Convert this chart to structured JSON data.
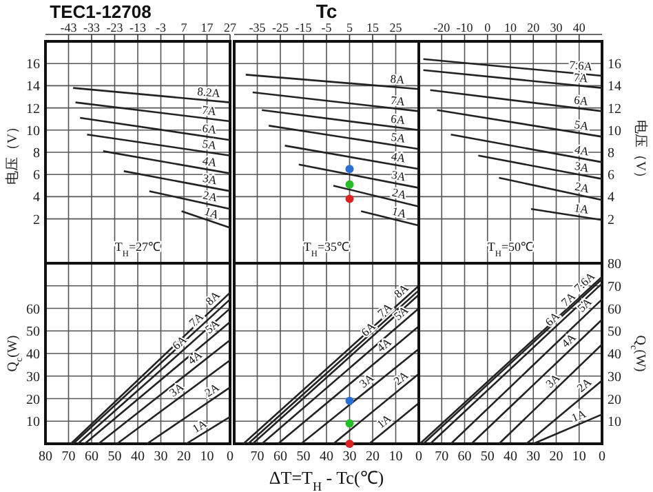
{
  "chart_data": [
    {
      "type": "line",
      "title": "TEC1-12708",
      "ylabel": "电压（V）",
      "xlim": [
        80,
        0
      ],
      "x2lim": [
        -53,
        27
      ],
      "x2ticks": [
        -43,
        -33,
        -23,
        -13,
        -3,
        7,
        17,
        27
      ],
      "ylim": [
        -2,
        18
      ],
      "yticks": [
        2,
        4,
        6,
        8,
        10,
        12,
        14,
        16
      ],
      "grid": true,
      "annotations": [
        "T$_{H}$=27℃"
      ],
      "series": [
        {
          "name": "8.2A",
          "color": "#222222",
          "x": [
            68,
            0
          ],
          "values": [
            13.8,
            12.5
          ]
        },
        {
          "name": "7A",
          "color": "#222222",
          "x": [
            67,
            0
          ],
          "values": [
            12.5,
            10.8
          ]
        },
        {
          "name": "6A",
          "color": "#222222",
          "x": [
            65,
            0
          ],
          "values": [
            11.1,
            9.1
          ]
        },
        {
          "name": "5A",
          "color": "#222222",
          "x": [
            62,
            0
          ],
          "values": [
            9.6,
            7.7
          ]
        },
        {
          "name": "4A",
          "color": "#222222",
          "x": [
            55,
            0
          ],
          "values": [
            8.1,
            6.1
          ]
        },
        {
          "name": "3A",
          "color": "#222222",
          "x": [
            46,
            0
          ],
          "values": [
            6.3,
            4.5
          ]
        },
        {
          "name": "2A",
          "color": "#222222",
          "x": [
            35,
            0
          ],
          "values": [
            4.5,
            2.9
          ]
        },
        {
          "name": "1A",
          "color": "#222222",
          "x": [
            21,
            0
          ],
          "values": [
            2.7,
            1.2
          ]
        }
      ]
    },
    {
      "type": "line",
      "x2label": "Tc",
      "xlim": [
        80,
        0
      ],
      "x2lim": [
        -45,
        35
      ],
      "x2ticks": [
        -35,
        -25,
        -15,
        -5,
        5,
        15,
        25
      ],
      "ylim": [
        -2,
        18
      ],
      "yticks": [
        2,
        4,
        6,
        8,
        10,
        12,
        14,
        16
      ],
      "tick_labels": "x",
      "grid": true,
      "annotations": [
        "T$_{H}$=35℃"
      ],
      "series": [
        {
          "name": "8A",
          "color": "#222222",
          "x": [
            75,
            0
          ],
          "values": [
            15.0,
            13.7
          ]
        },
        {
          "name": "7A",
          "color": "#222222",
          "x": [
            72,
            0
          ],
          "values": [
            13.4,
            11.7
          ]
        },
        {
          "name": "6A",
          "color": "#222222",
          "x": [
            68,
            0
          ],
          "values": [
            11.8,
            10.0
          ]
        },
        {
          "name": "5A",
          "color": "#222222",
          "x": [
            65,
            0
          ],
          "values": [
            10.4,
            8.3
          ]
        },
        {
          "name": "4A",
          "color": "#222222",
          "x": [
            58,
            0
          ],
          "values": [
            8.6,
            6.5
          ]
        },
        {
          "name": "3A",
          "color": "#222222",
          "x": [
            52,
            0
          ],
          "values": [
            6.9,
            4.8
          ]
        },
        {
          "name": "2A",
          "color": "#222222",
          "x": [
            37,
            0
          ],
          "values": [
            5.0,
            3.1
          ]
        },
        {
          "name": "1A",
          "color": "#222222",
          "x": [
            25,
            0
          ],
          "values": [
            2.7,
            1.4
          ]
        },
        {
          "type": "scatter",
          "color": "#2a6fd6",
          "x": [
            30
          ],
          "values": [
            6.5
          ]
        },
        {
          "type": "scatter",
          "color": "#22c022",
          "x": [
            30
          ],
          "values": [
            5.1
          ]
        },
        {
          "type": "scatter",
          "color": "#e02020",
          "x": [
            30
          ],
          "values": [
            3.8
          ]
        }
      ]
    },
    {
      "type": "line",
      "y2label": "电压（V）",
      "xlim": [
        80,
        0
      ],
      "x2lim": [
        -30,
        50
      ],
      "x2ticks": [
        -20,
        -10,
        0,
        10,
        20,
        30,
        40
      ],
      "y2lim": [
        -2,
        18
      ],
      "y2ticks": [
        2,
        4,
        6,
        8,
        10,
        12,
        14,
        16
      ],
      "grid": true,
      "annotations": [
        "T$_{H}$=50℃"
      ],
      "series": [
        {
          "name": "7.6A",
          "axis": "y2",
          "color": "#222222",
          "x": [
            78,
            0
          ],
          "values": [
            16.4,
            14.9
          ]
        },
        {
          "name": "7A",
          "axis": "y2",
          "color": "#222222",
          "x": [
            78,
            0
          ],
          "values": [
            15.4,
            13.8
          ]
        },
        {
          "name": "6A",
          "axis": "y2",
          "color": "#222222",
          "x": [
            75,
            0
          ],
          "values": [
            13.6,
            11.7
          ]
        },
        {
          "name": "5A",
          "axis": "y2",
          "color": "#222222",
          "x": [
            72,
            0
          ],
          "values": [
            11.8,
            9.4
          ]
        },
        {
          "name": "4A",
          "axis": "y2",
          "color": "#222222",
          "x": [
            66,
            0
          ],
          "values": [
            9.6,
            7.1
          ]
        },
        {
          "name": "3A",
          "axis": "y2",
          "color": "#222222",
          "x": [
            54,
            0
          ],
          "values": [
            7.7,
            5.6
          ]
        },
        {
          "name": "2A",
          "axis": "y2",
          "color": "#222222",
          "x": [
            45,
            0
          ],
          "values": [
            5.7,
            3.7
          ]
        },
        {
          "name": "1A",
          "axis": "y2",
          "color": "#222222",
          "x": [
            31,
            0
          ],
          "values": [
            2.9,
            1.9
          ]
        }
      ]
    },
    {
      "type": "line",
      "ylabel": "Q$_{c}$(W)",
      "xlim": [
        80,
        0
      ],
      "xticks": [
        80,
        70,
        60,
        50,
        40,
        30,
        20,
        10,
        0
      ],
      "ylim": [
        0,
        80
      ],
      "yticks": [
        {
          "value": 70,
          "label": null
        },
        10,
        20,
        30,
        40,
        50,
        60
      ],
      "grid": true,
      "series": [
        {
          "name": "8A",
          "color": "#222222",
          "x": [
            69,
            0
          ],
          "values": [
            0,
            67
          ]
        },
        {
          "name": "7A",
          "color": "#222222",
          "x": [
            68,
            0
          ],
          "values": [
            0,
            64
          ]
        },
        {
          "name": "6A",
          "color": "#222222",
          "x": [
            66,
            0
          ],
          "values": [
            0,
            60
          ]
        },
        {
          "name": "5A",
          "color": "#222222",
          "x": [
            63,
            0
          ],
          "values": [
            0,
            54
          ]
        },
        {
          "name": "4A",
          "color": "#222222",
          "x": [
            57,
            0
          ],
          "values": [
            0,
            46
          ]
        },
        {
          "name": "3A",
          "color": "#222222",
          "x": [
            49,
            0
          ],
          "values": [
            0,
            37
          ]
        },
        {
          "name": "2A",
          "color": "#222222",
          "x": [
            36,
            0
          ],
          "values": [
            0,
            25
          ]
        },
        {
          "name": "1A",
          "color": "#222222",
          "x": [
            19,
            0
          ],
          "values": [
            0,
            12
          ]
        }
      ]
    },
    {
      "type": "line",
      "xlabel": "ΔT=T$_{H}$ - Tc(℃)",
      "xlim": [
        80,
        0
      ],
      "xticks": [
        {
          "value": 80,
          "label": null
        },
        70,
        60,
        50,
        40,
        30,
        20,
        10,
        0
      ],
      "ylim": [
        0,
        80
      ],
      "yticks": [
        10,
        20,
        30,
        40,
        50,
        60,
        70
      ],
      "tick_labels": "x",
      "grid": true,
      "series": [
        {
          "name": "8A",
          "color": "#222222",
          "x": [
            76,
            0
          ],
          "values": [
            0,
            70
          ]
        },
        {
          "name": "7A",
          "color": "#222222",
          "x": [
            74,
            0
          ],
          "values": [
            0,
            68
          ]
        },
        {
          "name": "6A",
          "color": "#222222",
          "x": [
            72,
            0
          ],
          "values": [
            0,
            66
          ]
        },
        {
          "name": "5A",
          "color": "#222222",
          "x": [
            68,
            0
          ],
          "values": [
            0,
            60
          ]
        },
        {
          "name": "4A",
          "color": "#222222",
          "x": [
            61,
            0
          ],
          "values": [
            0,
            52
          ]
        },
        {
          "name": "3A",
          "color": "#222222",
          "x": [
            51,
            0
          ],
          "values": [
            0,
            42
          ]
        },
        {
          "name": "2A",
          "color": "#222222",
          "x": [
            37,
            0
          ],
          "values": [
            0,
            31
          ]
        },
        {
          "name": "1A",
          "color": "#222222",
          "x": [
            21.5,
            0
          ],
          "values": [
            0,
            18
          ]
        },
        {
          "type": "scatter",
          "color": "#2a6fd6",
          "x": [
            30
          ],
          "values": [
            19
          ]
        },
        {
          "type": "scatter",
          "color": "#22c022",
          "x": [
            30
          ],
          "values": [
            9
          ]
        },
        {
          "type": "scatter",
          "color": "#e02020",
          "x": [
            30
          ],
          "values": [
            0
          ]
        }
      ]
    },
    {
      "type": "line",
      "y2label": "Q$_{c}$(W)",
      "xlim": [
        80,
        0
      ],
      "xticks": [
        {
          "value": 80,
          "label": null
        },
        70,
        60,
        50,
        40,
        30,
        20,
        10,
        0
      ],
      "y2lim": [
        0,
        80
      ],
      "y2ticks": [
        10,
        20,
        30,
        40,
        50,
        60,
        70,
        80
      ],
      "grid": true,
      "series": [
        {
          "name": "7.6A",
          "axis": "y2",
          "color": "#222222",
          "x": [
            79.5,
            0
          ],
          "values": [
            0,
            74
          ]
        },
        {
          "name": "7A",
          "axis": "y2",
          "color": "#222222",
          "x": [
            78,
            0
          ],
          "values": [
            0,
            73
          ]
        },
        {
          "name": "6A",
          "axis": "y2",
          "color": "#222222",
          "x": [
            75,
            0
          ],
          "values": [
            0,
            71
          ]
        },
        {
          "name": "5A",
          "axis": "y2",
          "color": "#222222",
          "x": [
            66,
            0
          ],
          "values": [
            0,
            64
          ]
        },
        {
          "name": "4A",
          "axis": "y2",
          "color": "#222222",
          "x": [
            57,
            0
          ],
          "values": [
            0,
            55
          ]
        },
        {
          "name": "3A",
          "axis": "y2",
          "color": "#222222",
          "x": [
            45,
            0
          ],
          "values": [
            0,
            44
          ]
        },
        {
          "name": "2A",
          "axis": "y2",
          "color": "#222222",
          "x": [
            33,
            0
          ],
          "values": [
            0,
            28
          ]
        },
        {
          "name": "1A",
          "axis": "y2",
          "color": "#222222",
          "x": [
            30,
            0
          ],
          "values": [
            0,
            13
          ]
        }
      ]
    }
  ]
}
